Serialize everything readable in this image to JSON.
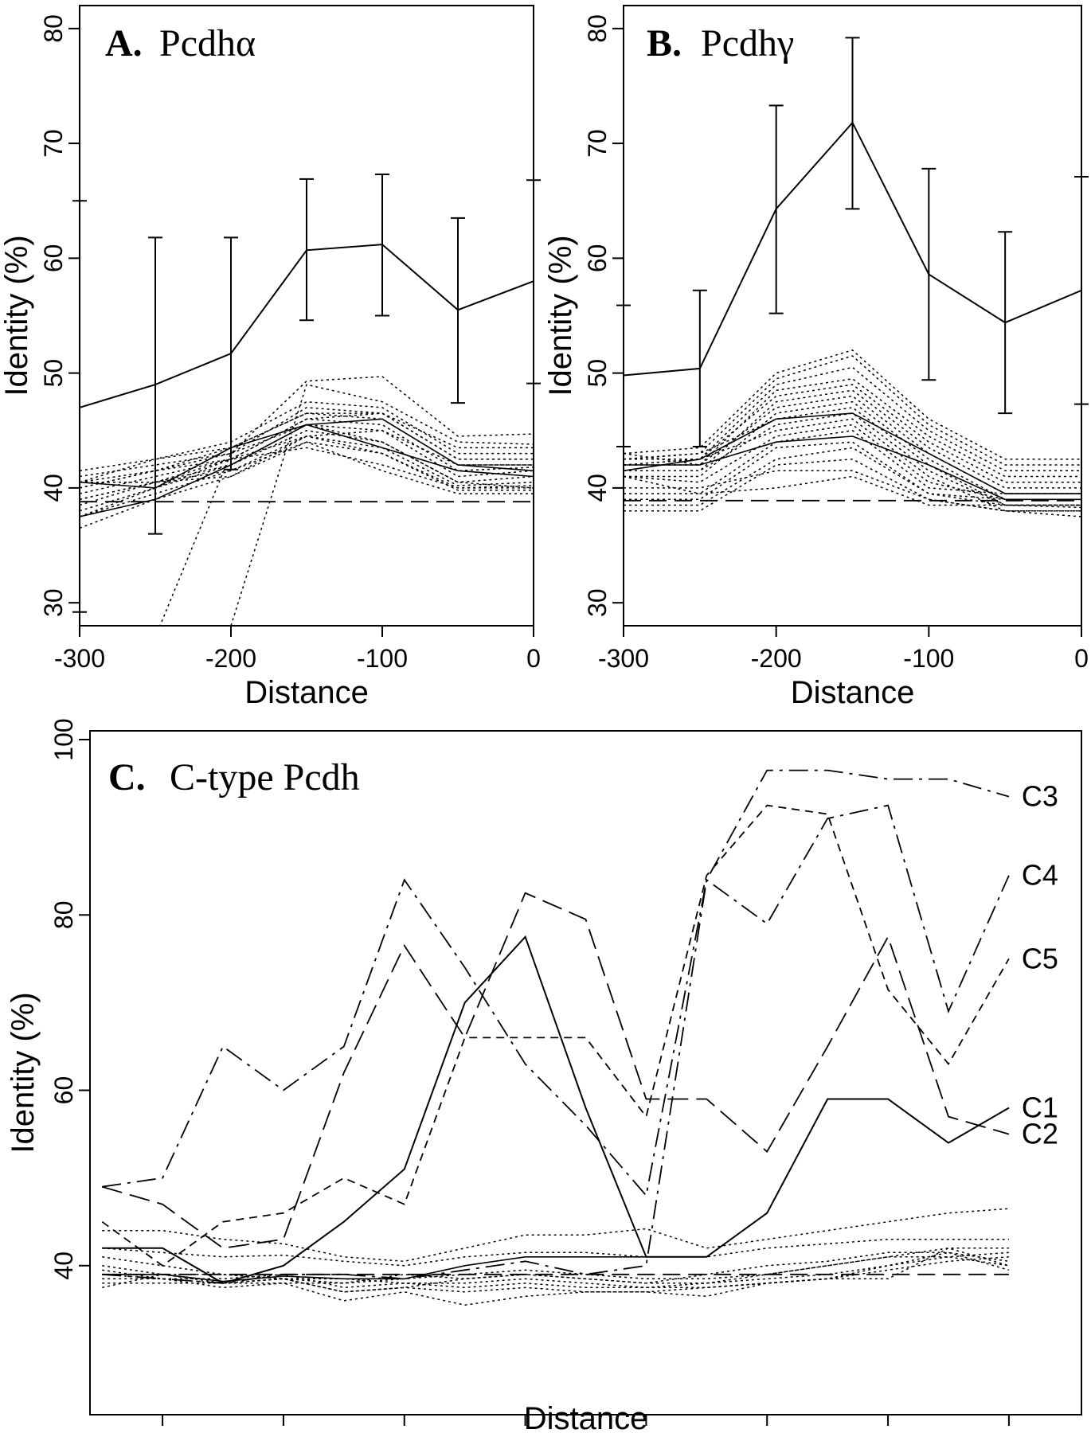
{
  "chart_data": [
    {
      "type": "line",
      "panel_letter": "A.",
      "panel_name": "Pcdhα",
      "xlabel": "Distance",
      "ylabel": "Identity (%)",
      "xlim": [
        -300,
        0
      ],
      "ylim": [
        28,
        82
      ],
      "xticks": [
        -300,
        -200,
        -100,
        0
      ],
      "yticks": [
        30,
        40,
        50,
        60,
        70,
        80
      ],
      "x": [
        -300,
        -250,
        -200,
        -150,
        -100,
        -50,
        0
      ],
      "series": [
        {
          "style": "solid",
          "values": [
            47,
            49,
            51.7,
            60.7,
            61.2,
            55.5,
            58
          ],
          "err_low": [
            29.2,
            36,
            41.6,
            54.6,
            55,
            47.4,
            49.1
          ],
          "err_high": [
            65,
            61.8,
            61.8,
            66.9,
            67.3,
            63.5,
            66.8
          ]
        },
        {
          "style": "dashed",
          "values": [
            38.8,
            38.8,
            38.8,
            38.8,
            38.8,
            38.8,
            38.8
          ]
        },
        {
          "style": "dotted",
          "values": [
            null,
            27,
            43,
            49.3,
            49.7,
            44.5,
            44.7
          ]
        },
        {
          "style": "dotted",
          "values": [
            null,
            null,
            28,
            49,
            47.5,
            44,
            43.8
          ]
        },
        {
          "style": "dotted",
          "values": [
            40.5,
            42.5,
            44,
            47.5,
            47,
            43,
            43
          ]
        },
        {
          "style": "dotted",
          "values": [
            41,
            42,
            43,
            47,
            46.5,
            42.5,
            42.5
          ]
        },
        {
          "style": "dotted",
          "values": [
            40,
            41.5,
            43.5,
            46.5,
            46,
            42,
            42
          ]
        },
        {
          "style": "dotted",
          "values": [
            39.5,
            41,
            42.5,
            46,
            45.5,
            41.5,
            41.8
          ]
        },
        {
          "style": "dotted",
          "values": [
            38.5,
            40.5,
            42,
            45.5,
            45,
            41,
            41.5
          ]
        },
        {
          "style": "dotted",
          "values": [
            38,
            40,
            42,
            45,
            44,
            40.5,
            41
          ]
        },
        {
          "style": "dotted",
          "values": [
            37.5,
            39.5,
            41.5,
            44.5,
            43.5,
            40.2,
            40.5
          ]
        },
        {
          "style": "dotted",
          "values": [
            36.5,
            39,
            41,
            44,
            43,
            40,
            40.2
          ]
        },
        {
          "style": "dotted",
          "values": [
            40,
            41.5,
            43,
            45.5,
            44,
            40.5,
            40
          ]
        },
        {
          "style": "dotted",
          "values": [
            39,
            40.5,
            42.5,
            44.5,
            43,
            39.8,
            39.8
          ]
        },
        {
          "style": "dotted",
          "values": [
            41.5,
            42.5,
            43.5,
            46.5,
            46.5,
            43.5,
            43.5
          ]
        },
        {
          "style": "dotted",
          "values": [
            40.5,
            41.5,
            42.5,
            43.5,
            42,
            40,
            40
          ]
        },
        {
          "style": "dotted",
          "values": [
            37.5,
            40,
            42.5,
            46,
            46.5,
            42.5,
            42.5
          ]
        },
        {
          "style": "dotted",
          "values": [
            39,
            40.5,
            41.5,
            44,
            41.5,
            39.5,
            39.5
          ]
        },
        {
          "style": "dotted",
          "values": [
            40.5,
            40.5,
            41,
            44.5,
            45,
            42,
            42
          ]
        },
        {
          "style": "solid-thin",
          "values": [
            40.5,
            40,
            43.5,
            45.5,
            46,
            42,
            41.5
          ]
        },
        {
          "style": "solid-thin",
          "values": [
            37.5,
            39,
            42,
            45.5,
            43.5,
            41.5,
            41
          ]
        }
      ]
    },
    {
      "type": "line",
      "panel_letter": "B.",
      "panel_name": "Pcdhγ",
      "xlabel": "Distance",
      "ylabel": "Identity (%)",
      "xlim": [
        -300,
        0
      ],
      "ylim": [
        28,
        82
      ],
      "xticks": [
        -300,
        -200,
        -100,
        0
      ],
      "yticks": [
        30,
        40,
        50,
        60,
        70,
        80
      ],
      "x": [
        -300,
        -250,
        -200,
        -150,
        -100,
        -50,
        0
      ],
      "series": [
        {
          "style": "solid",
          "values": [
            49.8,
            50.4,
            64.3,
            71.8,
            58.6,
            54.4,
            57.2
          ],
          "err_low": [
            43.6,
            43.6,
            55.2,
            64.3,
            49.4,
            46.5,
            47.3
          ],
          "err_high": [
            55.9,
            57.2,
            73.3,
            79.2,
            67.8,
            62.3,
            67.1
          ]
        },
        {
          "style": "dashed",
          "values": [
            38.9,
            38.9,
            38.9,
            38.9,
            38.9,
            38.9,
            38.9
          ]
        },
        {
          "style": "dotted",
          "values": [
            43,
            43.5,
            50,
            52,
            46,
            42.5,
            42.5
          ]
        },
        {
          "style": "dotted",
          "values": [
            42.5,
            43,
            49.5,
            51.5,
            45.5,
            42,
            42
          ]
        },
        {
          "style": "dotted",
          "values": [
            42,
            42.5,
            49,
            50.5,
            45,
            41.5,
            41.5
          ]
        },
        {
          "style": "dotted",
          "values": [
            43,
            42,
            48.5,
            49.5,
            44.5,
            41,
            41
          ]
        },
        {
          "style": "dotted",
          "values": [
            42.5,
            42.5,
            48,
            49,
            44,
            40.5,
            40.5
          ]
        },
        {
          "style": "dotted",
          "values": [
            41.5,
            41.5,
            47.5,
            48.5,
            43.5,
            40,
            40
          ]
        },
        {
          "style": "dotted",
          "values": [
            42,
            42,
            47,
            48,
            43,
            39.5,
            39.5
          ]
        },
        {
          "style": "dotted",
          "values": [
            41,
            41,
            46.5,
            47.5,
            42.5,
            39,
            39
          ]
        },
        {
          "style": "dotted",
          "values": [
            42.5,
            43,
            46,
            47,
            42,
            38.5,
            38.5
          ]
        },
        {
          "style": "dotted",
          "values": [
            41.5,
            41.5,
            45.5,
            46.5,
            41.5,
            38.5,
            38.3
          ]
        },
        {
          "style": "dotted",
          "values": [
            42,
            42.5,
            45,
            46,
            41,
            38,
            38
          ]
        },
        {
          "style": "dotted",
          "values": [
            41,
            40.5,
            44.5,
            45.5,
            40.5,
            39,
            39
          ]
        },
        {
          "style": "dotted",
          "values": [
            39.5,
            39.5,
            44,
            45,
            40,
            39.5,
            39.5
          ]
        },
        {
          "style": "dotted",
          "values": [
            39,
            39,
            43.5,
            44,
            39.5,
            39,
            39
          ]
        },
        {
          "style": "dotted",
          "values": [
            38.5,
            38.5,
            42.5,
            43.5,
            39.5,
            38.5,
            38.5
          ]
        },
        {
          "style": "dotted",
          "values": [
            38,
            38,
            42,
            42.5,
            39,
            38,
            37.5
          ]
        },
        {
          "style": "dotted",
          "values": [
            40,
            40,
            41.5,
            41.5,
            39,
            38,
            38
          ]
        },
        {
          "style": "dotted",
          "values": [
            41,
            39.5,
            40,
            41,
            38.5,
            38.5,
            38.5
          ]
        },
        {
          "style": "solid-thin",
          "values": [
            42,
            42,
            44,
            44.5,
            42,
            39,
            39
          ]
        },
        {
          "style": "solid-thin",
          "values": [
            41.5,
            42.5,
            46,
            46.5,
            43,
            39.5,
            39.5
          ]
        }
      ]
    },
    {
      "type": "line",
      "panel_letter": "C.",
      "panel_name": "C-type Pcdh",
      "xlabel": "Distance",
      "ylabel": "Identity (%)",
      "xlim": [
        -760,
        60
      ],
      "ylim": [
        23,
        101
      ],
      "xticks": [
        -700,
        -600,
        -500,
        -400,
        -300,
        -200,
        -100,
        0
      ],
      "yticks": [
        40,
        60,
        80,
        100
      ],
      "x": [
        -750,
        -700,
        -650,
        -600,
        -550,
        -500,
        -450,
        -400,
        -350,
        -300,
        -250,
        -200,
        -150,
        -100,
        -50,
        0
      ],
      "series": [
        {
          "name": "C3",
          "style": "dashdot",
          "values": [
            39,
            38.5,
            38,
            39,
            39,
            38.5,
            39.5,
            40.5,
            39,
            40,
            84,
            96.5,
            96.5,
            95.5,
            95.5,
            93.5
          ]
        },
        {
          "name": "C4",
          "style": "dashdot",
          "values": [
            49,
            50,
            65,
            60,
            65,
            84,
            74,
            63,
            56,
            48,
            84,
            79,
            91,
            92.5,
            69,
            84.5
          ]
        },
        {
          "name": "C5",
          "style": "dashed-short",
          "values": [
            45,
            40,
            45,
            46,
            50,
            47,
            66,
            66,
            66,
            57,
            84.5,
            92.5,
            91.5,
            71.5,
            63,
            75
          ]
        },
        {
          "name": "C1",
          "style": "solid",
          "values": [
            42,
            42,
            38,
            40,
            45,
            51,
            70,
            77.5,
            58,
            41,
            41,
            46,
            59,
            59,
            54,
            58
          ]
        },
        {
          "name": "C2",
          "style": "dashed-long",
          "values": [
            49,
            47,
            42,
            43,
            62,
            76.5,
            66,
            82.5,
            79.5,
            59,
            59,
            53,
            65,
            77.5,
            57,
            55
          ]
        },
        {
          "style": "dashed",
          "values": [
            39,
            39,
            39,
            39,
            39,
            39,
            39,
            39,
            39,
            39,
            39,
            39,
            39,
            39,
            39,
            39
          ]
        },
        {
          "style": "dotted",
          "values": [
            44,
            44,
            43,
            42.5,
            41,
            40.5,
            42,
            43.5,
            43.5,
            44.2,
            42,
            43,
            44,
            45,
            46,
            46.5
          ]
        },
        {
          "style": "dotted",
          "values": [
            42,
            41.5,
            41,
            41.2,
            40.5,
            40,
            41,
            41.5,
            41.5,
            41,
            41,
            42,
            42.5,
            43,
            43,
            43
          ]
        },
        {
          "style": "dotted",
          "values": [
            40,
            39,
            39,
            38.5,
            38,
            38.5,
            39,
            39.5,
            39,
            38.5,
            38.5,
            39,
            40,
            41,
            42,
            42
          ]
        },
        {
          "style": "dotted",
          "values": [
            39,
            38.5,
            38.5,
            39,
            37.5,
            38,
            37.5,
            38,
            37.5,
            37.5,
            38,
            38.5,
            39,
            40,
            41,
            41.5
          ]
        },
        {
          "style": "dotted",
          "values": [
            38,
            38,
            38,
            38.5,
            37,
            37.5,
            37,
            37.5,
            37,
            37,
            37.5,
            38,
            38.5,
            39.5,
            40.5,
            41
          ]
        },
        {
          "style": "dotted",
          "values": [
            38.5,
            38.5,
            37.5,
            38,
            36,
            37,
            35.5,
            36.5,
            37,
            37,
            36.5,
            38,
            38.5,
            40,
            41.5,
            40.5
          ]
        },
        {
          "style": "dotted",
          "values": [
            37.5,
            39,
            38,
            38,
            38,
            39,
            38.5,
            39,
            38.5,
            38,
            38,
            39,
            40,
            41,
            41,
            40
          ]
        },
        {
          "style": "dotted",
          "values": [
            39.5,
            38.5,
            38,
            38.5,
            38.5,
            38,
            38,
            38.5,
            38,
            37.5,
            37.5,
            38,
            38.5,
            38.5,
            42,
            40
          ]
        },
        {
          "style": "dotted",
          "values": [
            41,
            40,
            39,
            38.5,
            37,
            37.5,
            38.5,
            39,
            38.5,
            38,
            39,
            40,
            40.5,
            41.5,
            41.5,
            39.5
          ]
        },
        {
          "style": "solid-thin",
          "values": [
            39,
            39,
            38.2,
            38.8,
            38.5,
            38.5,
            40,
            41,
            41,
            41,
            41,
            46,
            59,
            59,
            54,
            58
          ]
        }
      ]
    }
  ]
}
